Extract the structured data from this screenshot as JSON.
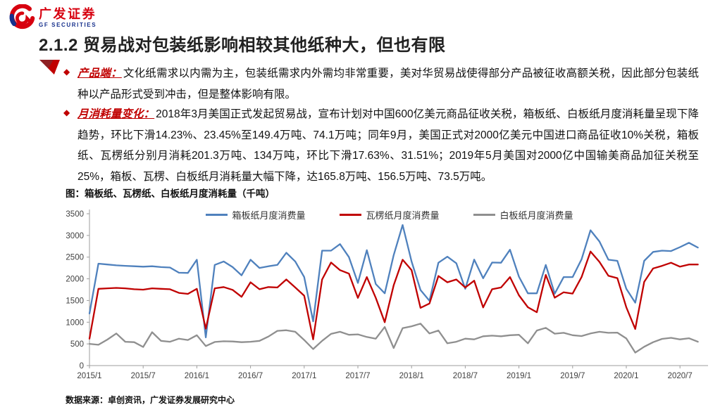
{
  "logo": {
    "name_cn": "广发证券",
    "name_en": "GF SECURITIES"
  },
  "slide": {
    "title": "2.1.2 贸易战对包装纸影响相较其他纸种大，但也有限"
  },
  "bullets": [
    {
      "lead": "产品端：",
      "text": "文化纸需求以内需为主，包装纸需求内外需均非常重要，美对华贸易战使得部分产品被征收高额关税，因此部分包装纸种以产品形式受到冲击，但是整体影响有限。"
    },
    {
      "lead": "月消耗量变化：",
      "text": "2018年3月美国正式发起贸易战，宣布计划对中国600亿美元商品征收关税，箱板纸、白板纸月度消耗量呈现下降趋势，环比下滑14.23%、23.45%至149.4万吨、74.1万吨；同年9月，美国正式对2000亿美元中国进口商品征收10%关税，箱板纸、瓦楞纸分别月消耗201.3万吨、134万吨，环比下滑17.63%、31.51%；2019年5月美国对2000亿中国输美商品加征关税至25%，箱板、瓦楞、白板纸月消耗量大幅下降，达165.8万吨、156.5万吨、73.5万吨。"
    }
  ],
  "chart": {
    "caption": "图：箱板纸、瓦楞纸、白板纸月度消耗量（千吨）",
    "source": "数据来源：卓创资讯，广发证券发展研究中心"
  },
  "chart_data": {
    "type": "line",
    "title": "图：箱板纸、瓦楞纸、白板纸月度消耗量（千吨）",
    "unit": "千吨",
    "x": [
      "2015/1",
      "2015/2",
      "2015/3",
      "2015/4",
      "2015/5",
      "2015/6",
      "2015/7",
      "2015/8",
      "2015/9",
      "2015/10",
      "2015/11",
      "2015/12",
      "2016/1",
      "2016/2",
      "2016/3",
      "2016/4",
      "2016/5",
      "2016/6",
      "2016/7",
      "2016/8",
      "2016/9",
      "2016/10",
      "2016/11",
      "2016/12",
      "2017/1",
      "2017/2",
      "2017/3",
      "2017/4",
      "2017/5",
      "2017/6",
      "2017/7",
      "2017/8",
      "2017/9",
      "2017/10",
      "2017/11",
      "2017/12",
      "2018/1",
      "2018/2",
      "2018/3",
      "2018/4",
      "2018/5",
      "2018/6",
      "2018/7",
      "2018/8",
      "2018/9",
      "2018/10",
      "2018/11",
      "2018/12",
      "2019/1",
      "2019/2",
      "2019/3",
      "2019/4",
      "2019/5",
      "2019/6",
      "2019/7",
      "2019/8",
      "2019/9",
      "2019/10",
      "2019/11",
      "2019/12",
      "2020/1",
      "2020/2",
      "2020/3",
      "2020/4",
      "2020/5",
      "2020/6",
      "2020/7",
      "2020/8",
      "2020/9"
    ],
    "series": [
      {
        "name": "箱板纸月度消费量",
        "color": "#4F81BD",
        "values": [
          1200,
          2350,
          2330,
          2310,
          2300,
          2290,
          2280,
          2290,
          2270,
          2260,
          2140,
          2135,
          2440,
          650,
          2320,
          2400,
          2270,
          2080,
          2440,
          2250,
          2290,
          2320,
          2600,
          2400,
          2040,
          1020,
          2650,
          2650,
          2800,
          2500,
          1905,
          2660,
          1880,
          1665,
          2545,
          3240,
          2400,
          1742,
          1494,
          2370,
          2510,
          2360,
          1770,
          2444,
          2013,
          2375,
          2370,
          2670,
          2050,
          1665,
          1665,
          2320,
          1658,
          2040,
          2040,
          2450,
          3120,
          2860,
          2440,
          2415,
          1770,
          1450,
          2415,
          2620,
          2650,
          2640,
          2730,
          2830,
          2720
        ]
      },
      {
        "name": "瓦楞纸月度消费量",
        "color": "#C00000",
        "values": [
          620,
          1770,
          1780,
          1790,
          1780,
          1760,
          1750,
          1780,
          1770,
          1760,
          1675,
          1653,
          1770,
          850,
          1780,
          1810,
          1745,
          1585,
          1920,
          1760,
          1810,
          1800,
          1985,
          1800,
          1610,
          605,
          1985,
          2375,
          2200,
          2120,
          1560,
          2040,
          1560,
          1000,
          1850,
          2440,
          2200,
          1330,
          1430,
          2065,
          1920,
          1985,
          1800,
          1957,
          1340,
          1760,
          1800,
          2040,
          1620,
          1345,
          1230,
          2090,
          1565,
          1690,
          1660,
          2040,
          2630,
          2390,
          2070,
          2015,
          1345,
          845,
          1930,
          2240,
          2300,
          2370,
          2280,
          2330,
          2330
        ]
      },
      {
        "name": "白板纸月度消费量",
        "color": "#8F8F8F",
        "values": [
          500,
          480,
          600,
          740,
          550,
          540,
          430,
          770,
          570,
          550,
          620,
          590,
          700,
          450,
          545,
          560,
          555,
          540,
          550,
          570,
          670,
          800,
          815,
          780,
          590,
          380,
          570,
          730,
          780,
          710,
          720,
          660,
          620,
          890,
          405,
          862,
          905,
          968,
          741,
          808,
          514,
          550,
          620,
          605,
          675,
          690,
          675,
          700,
          710,
          514,
          808,
          870,
          735,
          755,
          700,
          680,
          740,
          780,
          755,
          760,
          625,
          300,
          435,
          540,
          615,
          640,
          605,
          630,
          550
        ]
      }
    ],
    "ylim": [
      0,
      3500
    ],
    "y_ticks": [
      0,
      500,
      1000,
      1500,
      2000,
      2500,
      3000,
      3500
    ],
    "x_tick_labels": [
      "2015/1",
      "2015/7",
      "2016/1",
      "2016/7",
      "2017/1",
      "2017/7",
      "2018/1",
      "2018/7",
      "2019/1",
      "2019/7",
      "2020/1",
      "2020/7"
    ],
    "x_tick_every": 6,
    "grid": false,
    "legend_position": "top-center",
    "axis_color": "#9e9e9e",
    "tick_label_color": "#404040"
  }
}
